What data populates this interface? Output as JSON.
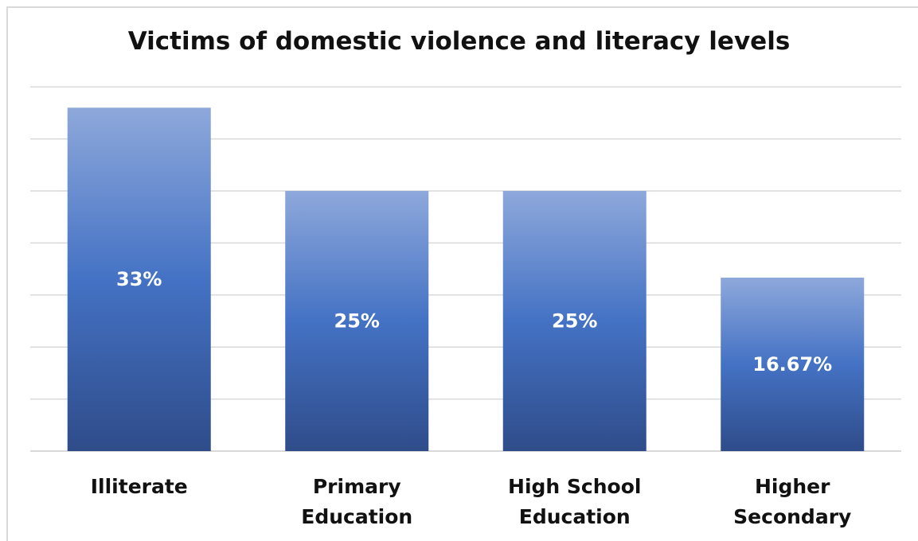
{
  "chart_data": {
    "type": "bar",
    "title": "Victims of domestic violence and literacy levels",
    "categories": [
      [
        "Illiterate"
      ],
      [
        "Primary",
        "Education"
      ],
      [
        "High School",
        "Education"
      ],
      [
        "Higher",
        "Secondary"
      ]
    ],
    "values": [
      33,
      25,
      25,
      16.67
    ],
    "data_labels": [
      "33%",
      "25%",
      "25%",
      "16.67%"
    ],
    "ylim": [
      0,
      35
    ],
    "grid": true,
    "y_axis_visible": false,
    "colors": {
      "bar_top": "#8EA8DB",
      "bar_mid": "#4472C4",
      "bar_bottom": "#2F4C8A",
      "grid": "#d9d9d9"
    }
  }
}
